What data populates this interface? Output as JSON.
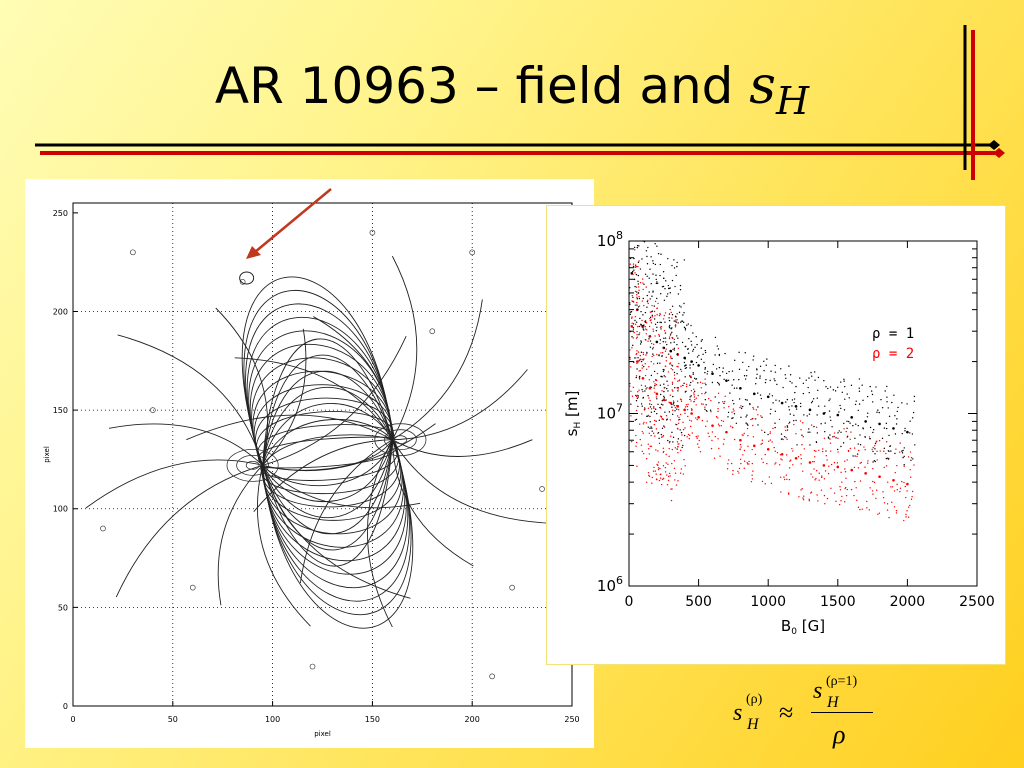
{
  "slide": {
    "title_text": "AR 10963 – field and ",
    "title_symbol": "s",
    "title_subscript": "H"
  },
  "colors": {
    "background_light": "#fffdb6",
    "background_dark": "#ffcf1f",
    "deco_black": "#000000",
    "deco_red": "#cc0000",
    "arrow": "#c0381e",
    "series_rho1": "#000000",
    "series_rho2": "#ff0000"
  },
  "field_map": {
    "xlabel": "pixel",
    "ylabel": "pixel",
    "x_ticks": [
      "0",
      "50",
      "100",
      "150",
      "200",
      "250"
    ],
    "y_ticks": [
      "0",
      "50",
      "100",
      "150",
      "200",
      "250"
    ],
    "xlim": [
      0,
      250
    ],
    "ylim": [
      0,
      255
    ],
    "grid": "dotted"
  },
  "formula": {
    "left_s": "s",
    "left_sup": "(ρ)",
    "left_sub": "H",
    "approx": "≈",
    "num_s": "s",
    "num_sup": "(ρ=1)",
    "num_sub": "H",
    "den": "ρ"
  },
  "chart_data": {
    "type": "scatter",
    "title": "",
    "xlabel_main": "B",
    "xlabel_sub": "0",
    "xlabel_unit": "[G]",
    "ylabel_main": "s",
    "ylabel_sub": "H",
    "ylabel_unit": "[m]",
    "xlim": [
      0,
      2500
    ],
    "ylim": [
      1000000,
      100000000
    ],
    "yscale": "log",
    "x_ticks": [
      "0",
      "500",
      "1000",
      "1500",
      "2000",
      "2500"
    ],
    "y_ticks": [
      {
        "base": "10",
        "exp": "6",
        "value": 1000000
      },
      {
        "base": "10",
        "exp": "7",
        "value": 10000000
      },
      {
        "base": "10",
        "exp": "8",
        "value": 100000000
      }
    ],
    "legend_position": "upper-right",
    "series": [
      {
        "name": "ρ = 1",
        "color": "#000000",
        "x": [
          20,
          60,
          100,
          150,
          200,
          250,
          300,
          350,
          400,
          450,
          500,
          600,
          700,
          800,
          900,
          1000,
          1100,
          1200,
          1300,
          1400,
          1500,
          1600,
          1700,
          1800,
          1900,
          2000
        ],
        "y": [
          65000000,
          40000000,
          32000000,
          28000000,
          26000000,
          24000000,
          23000000,
          22000000,
          21000000,
          20000000,
          19000000,
          17000000,
          15500000,
          14000000,
          13000000,
          12500000,
          11500000,
          11000000,
          10500000,
          10000000,
          9800000,
          9500000,
          9000000,
          8700000,
          8200000,
          7800000
        ]
      },
      {
        "name": "ρ = 2",
        "color": "#ff0000",
        "x": [
          20,
          60,
          100,
          150,
          200,
          250,
          300,
          350,
          400,
          450,
          500,
          600,
          700,
          800,
          900,
          1000,
          1100,
          1200,
          1300,
          1400,
          1500,
          1600,
          1700,
          1800,
          1900,
          2000
        ],
        "y": [
          32000000,
          20000000,
          16000000,
          14000000,
          13000000,
          12000000,
          11500000,
          11000000,
          10500000,
          10000000,
          9500000,
          8500000,
          7800000,
          7000000,
          6500000,
          6200000,
          5800000,
          5500000,
          5200000,
          5000000,
          4900000,
          4700000,
          4500000,
          4300000,
          4100000,
          3900000
        ]
      }
    ]
  }
}
